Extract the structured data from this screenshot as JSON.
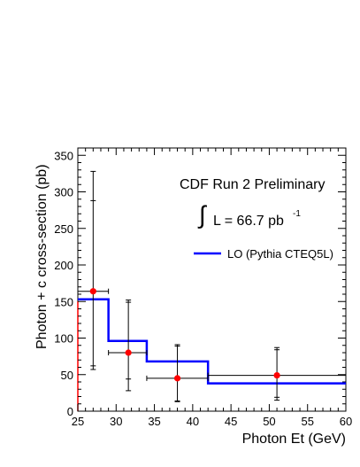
{
  "chart_data": {
    "type": "line",
    "title": "",
    "annotations": {
      "experiment": "CDF Run 2 Preliminary",
      "integral_symbol": "∫",
      "lumi_label": "L = 66.7 pb",
      "lumi_exponent": "-1"
    },
    "xlabel": "Photon Et (GeV)",
    "ylabel": "Photon + c cross-section (pb)",
    "xlim": [
      25,
      60
    ],
    "ylim": [
      0,
      360
    ],
    "x_ticks": [
      "25",
      "30",
      "35",
      "40",
      "45",
      "50",
      "55",
      "60"
    ],
    "y_ticks": [
      "0",
      "50",
      "100",
      "150",
      "200",
      "250",
      "300",
      "350"
    ],
    "grid": false,
    "legend_position": "top-right",
    "series": [
      {
        "name": "LO (Pythia CTEQ5L)",
        "kind": "step-histogram",
        "color": "#0000ff",
        "bins": [
          {
            "x_low": 25,
            "x_high": 29,
            "value": 153
          },
          {
            "x_low": 29,
            "x_high": 34,
            "value": 96
          },
          {
            "x_low": 34,
            "x_high": 42,
            "value": 68
          },
          {
            "x_low": 42,
            "x_high": 60,
            "value": 38
          }
        ]
      },
      {
        "name": "",
        "kind": "points",
        "color": "#ff0000",
        "points": [
          {
            "x": 27,
            "y": 164,
            "x_err": [
              25,
              29
            ],
            "stat_err": [
              62,
              288
            ],
            "total_err": [
              57,
              328
            ]
          },
          {
            "x": 31.6,
            "y": 80,
            "x_err": [
              29,
              34
            ],
            "stat_err": [
              44,
              149
            ],
            "total_err": [
              28,
              152
            ]
          },
          {
            "x": 38,
            "y": 45,
            "x_err": [
              34,
              42
            ],
            "stat_err": [
              14,
              89
            ],
            "total_err": [
              13,
              91
            ]
          },
          {
            "x": 51,
            "y": 49,
            "x_err": [
              42,
              60
            ],
            "stat_err": [
              19,
              84
            ],
            "total_err": [
              15,
              87
            ]
          }
        ]
      }
    ],
    "colors": {
      "frame": "#000000",
      "histogram": "#0000ff",
      "data_points": "#ff0000",
      "left_axis_accent": "#ff0000"
    }
  }
}
